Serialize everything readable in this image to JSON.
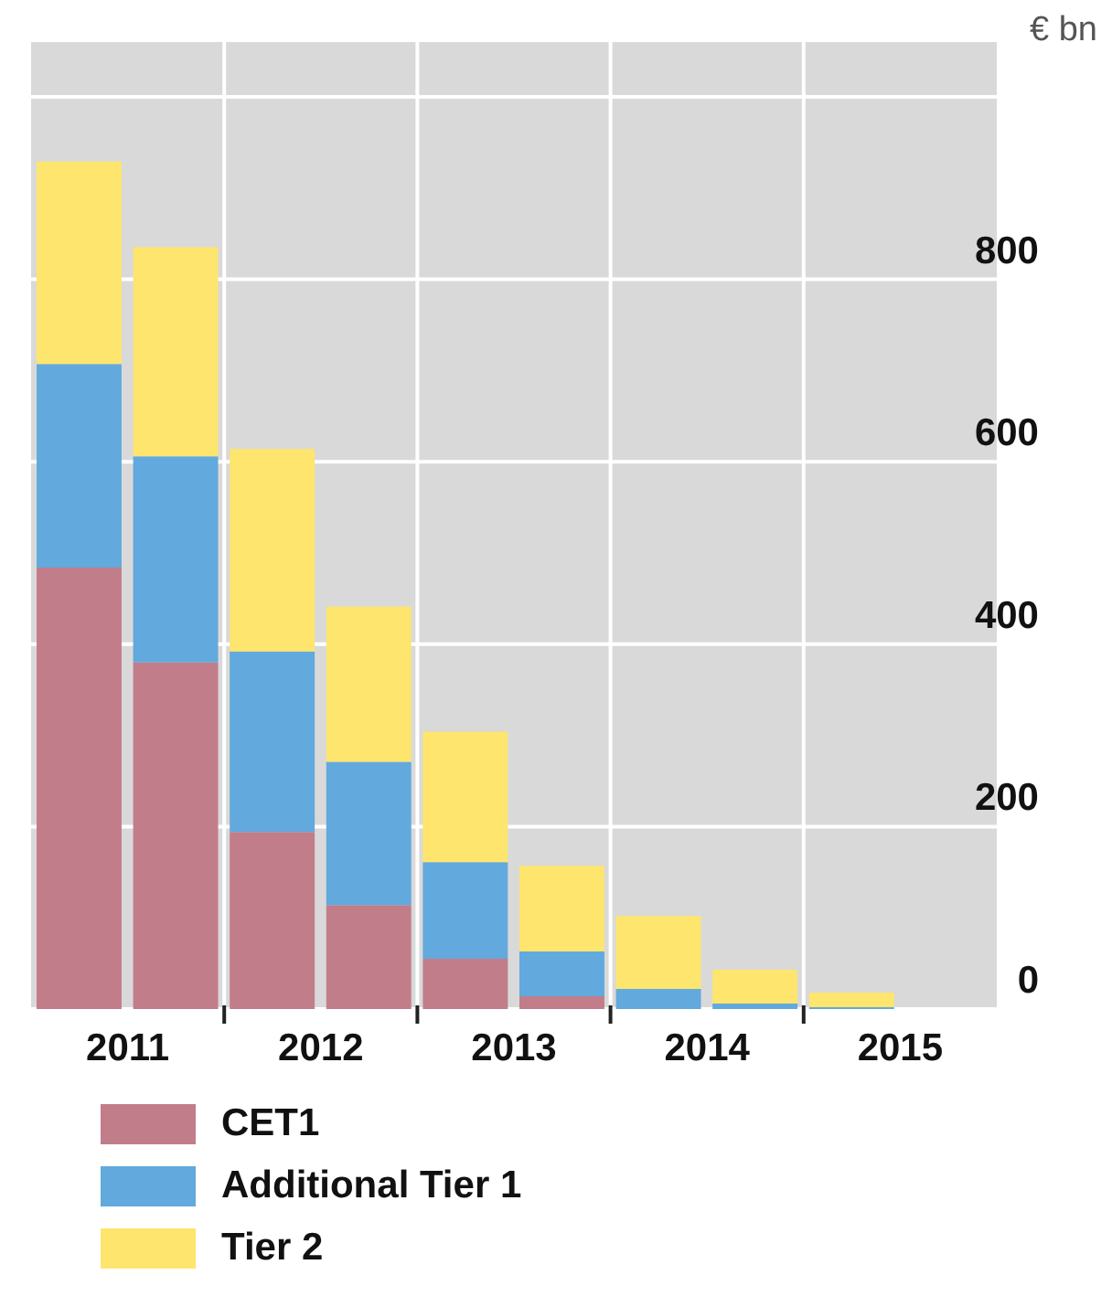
{
  "chart_data": {
    "type": "bar",
    "stacked": true,
    "ylabel": "€ bn",
    "x": [
      2010.75,
      2011.25,
      2011.75,
      2012.25,
      2012.75,
      2013.25,
      2013.75,
      2014.25,
      2014.75
    ],
    "series": [
      {
        "name": "CET1",
        "color": "#c27d8a",
        "values": [
          484,
          380,
          194,
          114,
          55,
          14,
          0,
          0,
          0
        ]
      },
      {
        "name": "Additional Tier 1",
        "color": "#62a9dd",
        "values": [
          223,
          226,
          198,
          157,
          106,
          49,
          22,
          6,
          2
        ]
      },
      {
        "name": "Tier 2",
        "color": "#fde56e",
        "values": [
          222,
          229,
          222,
          170,
          143,
          94,
          80,
          37,
          16
        ]
      }
    ],
    "xlim": [
      2010.5,
      2015.5
    ],
    "xticks": [
      2011,
      {
        "value": 2011.5,
        "label": null
      },
      2012,
      {
        "value": 2012.5,
        "label": null
      },
      2013,
      {
        "value": 2013.5,
        "label": null
      },
      2014,
      {
        "value": 2014.5,
        "label": null
      },
      2015
    ],
    "ylim": [
      0,
      1060
    ],
    "yticks": [
      0,
      200,
      400,
      600,
      800,
      {
        "value": 1000,
        "label": null
      }
    ],
    "grid": true,
    "legend": "bottom"
  }
}
